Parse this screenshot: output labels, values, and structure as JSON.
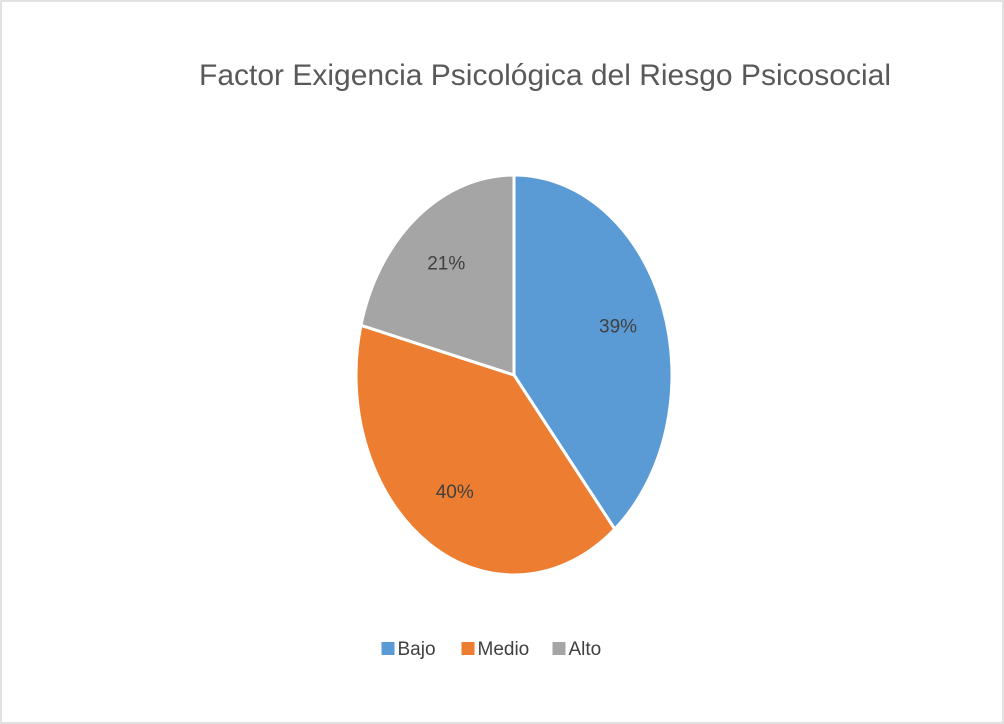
{
  "chart_data": {
    "type": "pie",
    "title": "Factor Exigencia Psicológica del Riesgo Psicosocial",
    "categories": [
      "Bajo",
      "Medio",
      "Alto"
    ],
    "values": [
      39,
      40,
      21
    ],
    "value_labels": [
      "39%",
      "40%",
      "21%"
    ],
    "colors": [
      "#5b9bd5",
      "#ed7d31",
      "#a5a5a5"
    ],
    "legend": "bottom"
  }
}
